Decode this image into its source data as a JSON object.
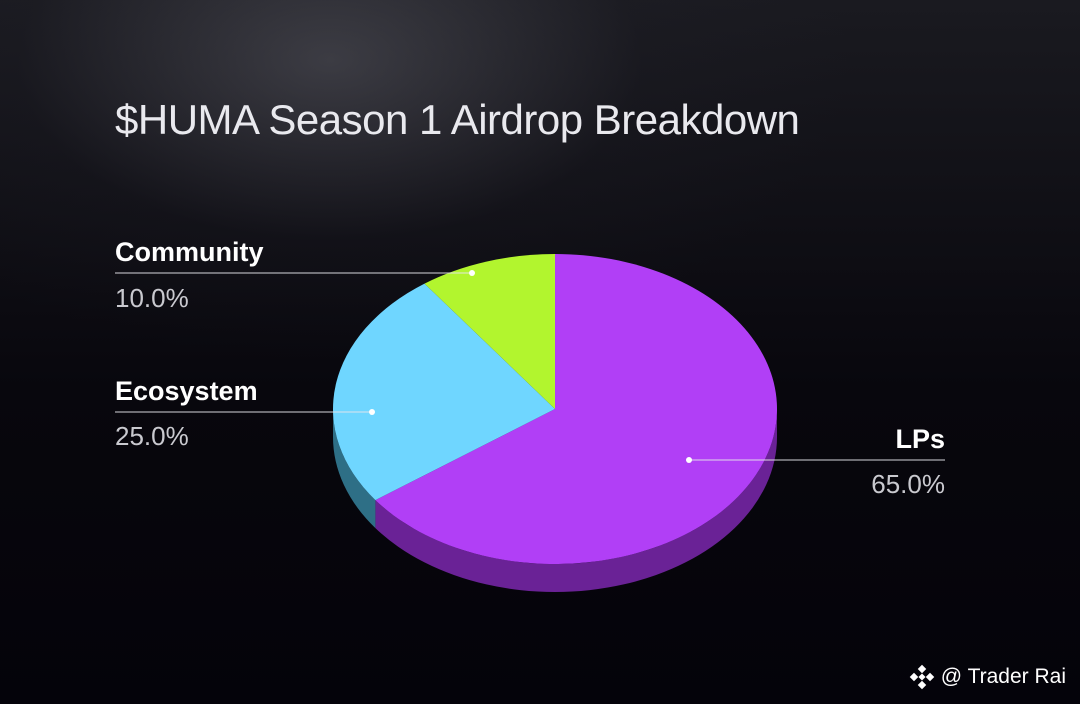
{
  "chart_data": {
    "type": "pie",
    "title": "$HUMA Season 1 Airdrop Breakdown",
    "slices": [
      {
        "label": "LPs",
        "value": 65.0,
        "value_label": "65.0%",
        "color": "#b13ff6",
        "side_color": "#6a2296"
      },
      {
        "label": "Ecosystem",
        "value": 25.0,
        "value_label": "25.0%",
        "color": "#6fd6ff",
        "side_color": "#2e6f86"
      },
      {
        "label": "Community",
        "value": 10.0,
        "value_label": "10.0%",
        "color": "#b2f52e",
        "side_color": "#5b7f15"
      }
    ],
    "style": "3d-tilted"
  },
  "watermark": {
    "text": "@ Trader Rai",
    "icon": "binance-logo-icon"
  }
}
